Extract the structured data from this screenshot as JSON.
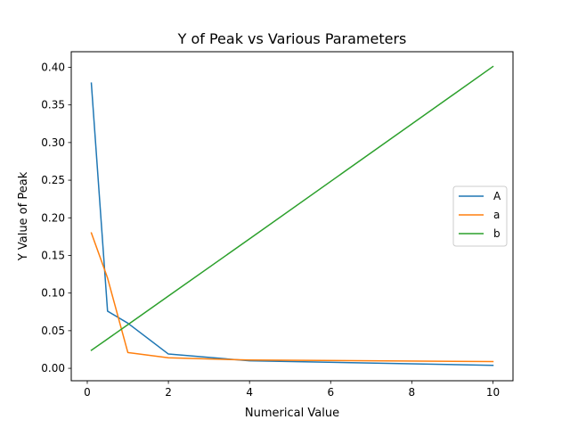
{
  "chart_data": {
    "type": "line",
    "title": "Y of Peak vs Various Parameters",
    "xlabel": "Numerical Value",
    "ylabel": "Y Value of Peak",
    "xlim": [
      -0.395,
      10.495
    ],
    "ylim": [
      -0.0165,
      0.4207
    ],
    "xticks": [
      0,
      2,
      4,
      6,
      8,
      10
    ],
    "xtick_labels": [
      "0",
      "2",
      "4",
      "6",
      "8",
      "10"
    ],
    "yticks": [
      0.0,
      0.05,
      0.1,
      0.15,
      0.2,
      0.25,
      0.3,
      0.35,
      0.4
    ],
    "ytick_labels": [
      "0.00",
      "0.05",
      "0.10",
      "0.15",
      "0.20",
      "0.25",
      "0.30",
      "0.35",
      "0.40"
    ],
    "grid": false,
    "legend_position": "center-right",
    "series": [
      {
        "name": "A",
        "color": "#1f77b4",
        "x": [
          0.1,
          0.5,
          1,
          2,
          4,
          10
        ],
        "y": [
          0.379,
          0.076,
          0.06,
          0.019,
          0.01,
          0.004
        ]
      },
      {
        "name": "a",
        "color": "#ff7f0e",
        "x": [
          0.1,
          0.5,
          1,
          2,
          4,
          10
        ],
        "y": [
          0.18,
          0.12,
          0.021,
          0.014,
          0.011,
          0.009
        ]
      },
      {
        "name": "b",
        "color": "#2ca02c",
        "x": [
          0.1,
          0.5,
          1,
          2,
          4,
          10
        ],
        "y": [
          0.024,
          0.039,
          0.058,
          0.096,
          0.172,
          0.401
        ]
      }
    ]
  }
}
